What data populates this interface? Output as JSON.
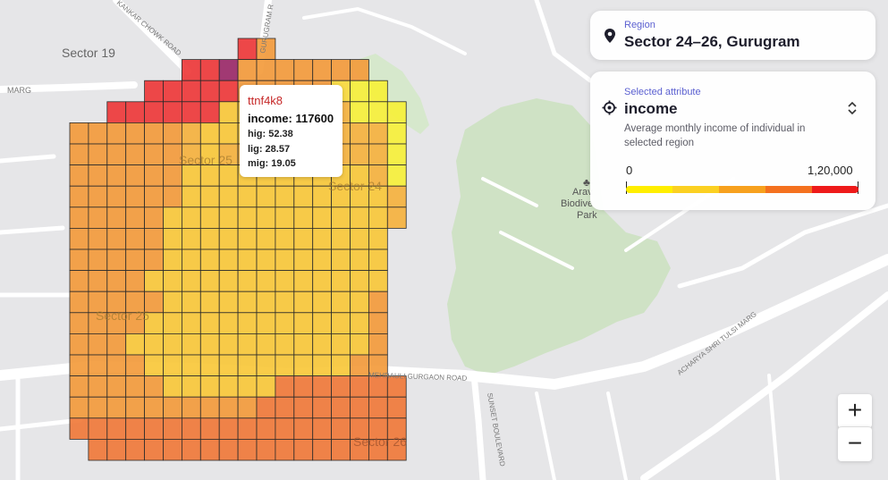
{
  "map_labels": {
    "sector19": "Sector 19",
    "sector25a": "Sector 25",
    "sector24": "Sector 24",
    "sector25b": "Sector 25",
    "sector26": "Sector 26",
    "park": [
      "Arav",
      "Biodive",
      "Park"
    ],
    "road_marg": "MARG",
    "road_chowk": "KANKAR CHOWK ROAD",
    "road_gurugram": "GURUGRAM R",
    "road_mg": "MEHRAULI GURGAON ROAD",
    "road_sunset": "SUNSET BOULEVARD",
    "road_tulsi": "ACHARYA SHRI TULSI MARG"
  },
  "region": {
    "label": "Region",
    "value": "Sector 24–26, Gurugram",
    "icon": "location-pin-icon"
  },
  "attribute": {
    "label": "Selected attribute",
    "value": "income",
    "icon": "target-icon",
    "selector_icon": "chevron-up-down-icon",
    "description": "Average monthly income of individual in selected region",
    "legend_min": "0",
    "legend_max": "1,20,000",
    "legend_colors": [
      "#ffee00",
      "#fbd022",
      "#f7a11e",
      "#f4711f",
      "#ee1a1a"
    ]
  },
  "tooltip": {
    "id": "ttnf4k8",
    "income": "income: 117600",
    "hig": "hig: 52.38",
    "lig": "lig: 28.57",
    "mig": "mig: 19.05"
  },
  "zoom": {
    "in": "+",
    "out": "−"
  },
  "colors": {
    "red": "#ee3a3a",
    "dark_red": "#e84a30",
    "orange_red": "#f07a3a",
    "orange": "#f39b3c",
    "light_orange": "#f5b23e",
    "amber": "#f8c83a",
    "yellow": "#fada3d",
    "bright_yellow": "#f6f03a",
    "purple": "#9b2a68"
  },
  "grid": {
    "rows": [
      "         RO ",
      "      RRPOOOOOOO",
      "    RRRRROOOOOBYY",
      "  RRRRRRLLLLALAYYY",
      "OOOOOOALLLLAALAAAY",
      "OOOOOOALAALLLAAAAY",
      "OOOOOOLLLLLLLLLLAY",
      "OOOOOOLLLLLLLLLLLA",
      "OOOOOLLLLLLLLLLLLA",
      "OOOOOLLLLLLLLLLLL",
      "OOOOOLLLLLLLLLLLL",
      "OOOOLLLLLLLLLLLLL",
      "OOOOOLLLLLLLLLLLO",
      "OOOOLLLLLLLLLLLLO",
      "OOOLLLLLLLLLLLLLO",
      "OOOOLLLLLLLLLLLOO",
      "OOOOOLLLLLLDDDDDDD",
      "OOOOOOOOOODDDDDDDD",
      "DDDDDDDDDDDDDDDDDD",
      " DDDDDDDDDDDDDDDDD"
    ]
  }
}
